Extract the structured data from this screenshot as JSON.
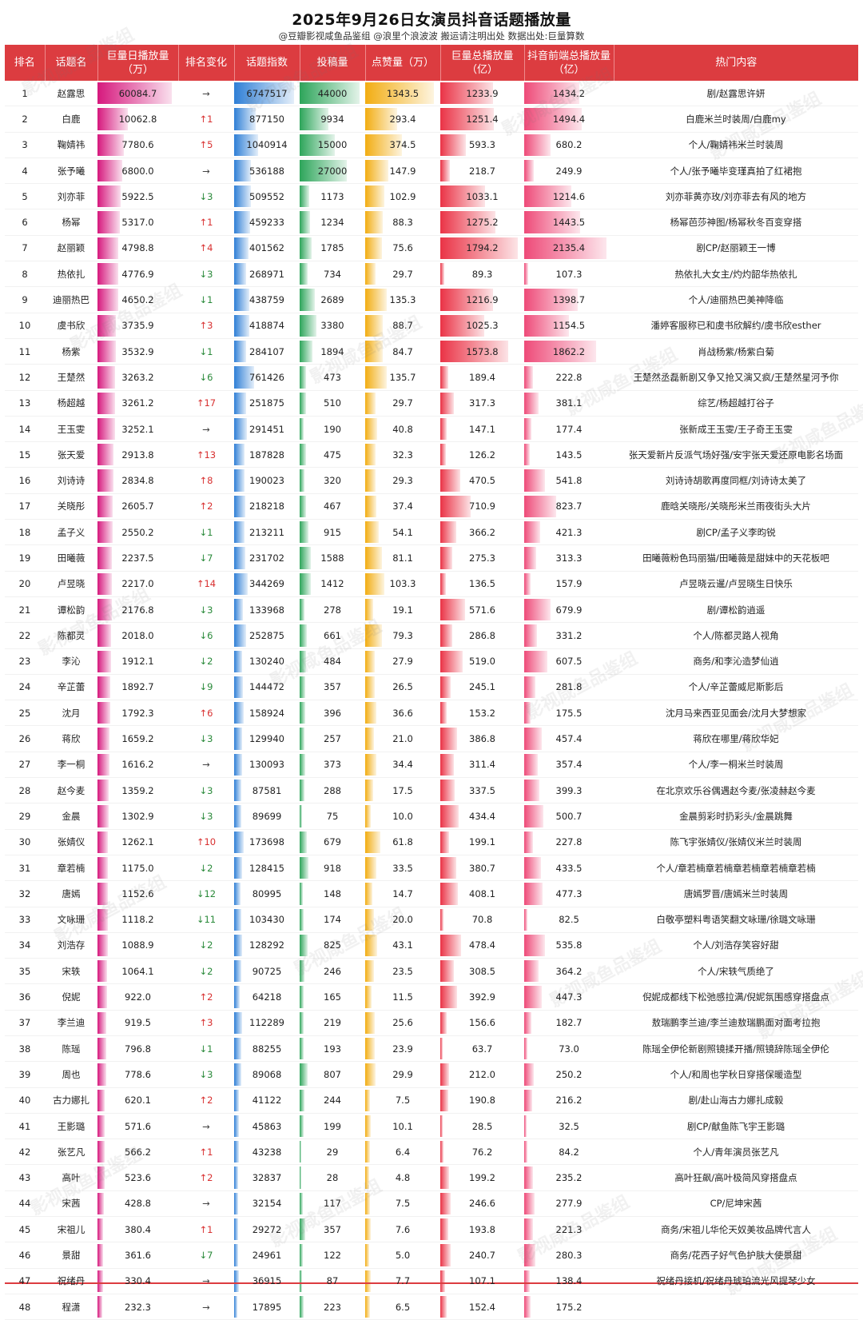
{
  "title": "2025年9月26日女演员抖音话题播放量",
  "subtitle": "@豆瓣影视咸鱼品鉴组 @浪里个浪波波 搬运请注明出处 数据出处:巨量算数",
  "columns": [
    "排名",
    "话题名",
    "巨量日播放量（万）",
    "排名变化",
    "话题指数",
    "投稿量",
    "点赞量（万）",
    "巨量总播放量（亿）",
    "抖音前端总播放量（亿）",
    "热门内容"
  ],
  "watermark": "影视咸鱼品鉴组",
  "colors": {
    "header": "#dc3c40",
    "daily": "#d6187d",
    "index": "#2f7fd6",
    "posts": "#2da55a",
    "likes": "#f2ad12",
    "total": "#ea3346",
    "front": "#ee4a78"
  },
  "rows": [
    {
      "rank": "1",
      "name": "赵露思",
      "daily": "60084.7",
      "change": "→",
      "index": "6747517",
      "posts": "44000",
      "likes": "1343.5",
      "total": "1233.9",
      "front": "1434.2",
      "hot": "剧/赵露思许妍"
    },
    {
      "rank": "2",
      "name": "白鹿",
      "daily": "10062.8",
      "change": "↑1",
      "index": "877150",
      "posts": "9934",
      "likes": "293.4",
      "total": "1251.4",
      "front": "1494.4",
      "hot": "白鹿米兰时装周/白鹿my"
    },
    {
      "rank": "3",
      "name": "鞠婧祎",
      "daily": "7780.6",
      "change": "↑5",
      "index": "1040914",
      "posts": "15000",
      "likes": "374.5",
      "total": "593.3",
      "front": "680.2",
      "hot": "个人/鞠婧祎米兰时装周"
    },
    {
      "rank": "4",
      "name": "张予曦",
      "daily": "6800.0",
      "change": "→",
      "index": "536188",
      "posts": "27000",
      "likes": "147.9",
      "total": "218.7",
      "front": "249.9",
      "hot": "个人/张予曦毕变瑾真拍了红裙抱"
    },
    {
      "rank": "5",
      "name": "刘亦菲",
      "daily": "5922.5",
      "change": "↓3",
      "index": "509552",
      "posts": "1173",
      "likes": "102.9",
      "total": "1033.1",
      "front": "1214.6",
      "hot": "刘亦菲黄亦玫/刘亦菲去有风的地方"
    },
    {
      "rank": "6",
      "name": "杨幂",
      "daily": "5317.0",
      "change": "↑1",
      "index": "459233",
      "posts": "1234",
      "likes": "88.3",
      "total": "1275.2",
      "front": "1443.5",
      "hot": "杨幂芭莎神图/杨幂秋冬百变穿搭"
    },
    {
      "rank": "7",
      "name": "赵丽颖",
      "daily": "4798.8",
      "change": "↑4",
      "index": "401562",
      "posts": "1785",
      "likes": "75.6",
      "total": "1794.2",
      "front": "2135.4",
      "hot": "剧CP/赵丽颖王一博"
    },
    {
      "rank": "8",
      "name": "热依扎",
      "daily": "4776.9",
      "change": "↓3",
      "index": "268971",
      "posts": "734",
      "likes": "29.7",
      "total": "89.3",
      "front": "107.3",
      "hot": "热依扎大女主/灼灼韶华热依扎"
    },
    {
      "rank": "9",
      "name": "迪丽热巴",
      "daily": "4650.2",
      "change": "↓1",
      "index": "438759",
      "posts": "2689",
      "likes": "135.3",
      "total": "1216.9",
      "front": "1398.7",
      "hot": "个人/迪丽热巴美神降临"
    },
    {
      "rank": "10",
      "name": "虞书欣",
      "daily": "3735.9",
      "change": "↑3",
      "index": "418874",
      "posts": "3380",
      "likes": "88.7",
      "total": "1025.3",
      "front": "1154.5",
      "hot": "潘婷客服称已和虞书欣解约/虞书欣esther"
    },
    {
      "rank": "11",
      "name": "杨紫",
      "daily": "3532.9",
      "change": "↓1",
      "index": "284107",
      "posts": "1894",
      "likes": "84.7",
      "total": "1573.8",
      "front": "1862.2",
      "hot": "肖战杨紫/杨紫白菊"
    },
    {
      "rank": "12",
      "name": "王楚然",
      "daily": "3263.2",
      "change": "↓6",
      "index": "761426",
      "posts": "473",
      "likes": "135.7",
      "total": "189.4",
      "front": "222.8",
      "hot": "王楚然丞磊新剧又争又抢又演又疯/王楚然星河予你"
    },
    {
      "rank": "13",
      "name": "杨超越",
      "daily": "3261.2",
      "change": "↑17",
      "index": "251875",
      "posts": "510",
      "likes": "29.7",
      "total": "317.3",
      "front": "381.1",
      "hot": "综艺/杨超越打谷子"
    },
    {
      "rank": "14",
      "name": "王玉雯",
      "daily": "3252.1",
      "change": "→",
      "index": "291451",
      "posts": "190",
      "likes": "40.8",
      "total": "147.1",
      "front": "177.4",
      "hot": "张新成王玉雯/王子奇王玉雯"
    },
    {
      "rank": "15",
      "name": "张天爱",
      "daily": "2913.8",
      "change": "↑13",
      "index": "187828",
      "posts": "475",
      "likes": "32.3",
      "total": "126.2",
      "front": "143.5",
      "hot": "张天爱新片反派气场好强/安宇张天爱还原电影名场面"
    },
    {
      "rank": "16",
      "name": "刘诗诗",
      "daily": "2834.8",
      "change": "↑8",
      "index": "190023",
      "posts": "320",
      "likes": "29.3",
      "total": "470.5",
      "front": "541.8",
      "hot": "刘诗诗胡歌再度同框/刘诗诗太美了"
    },
    {
      "rank": "17",
      "name": "关晓彤",
      "daily": "2605.7",
      "change": "↑2",
      "index": "218218",
      "posts": "467",
      "likes": "37.4",
      "total": "710.9",
      "front": "823.7",
      "hot": "鹿晗关晓彤/关晓彤米兰雨夜街头大片"
    },
    {
      "rank": "18",
      "name": "孟子义",
      "daily": "2550.2",
      "change": "↓1",
      "index": "213211",
      "posts": "915",
      "likes": "54.1",
      "total": "366.2",
      "front": "421.3",
      "hot": "剧CP/孟子义李昀锐"
    },
    {
      "rank": "19",
      "name": "田曦薇",
      "daily": "2237.5",
      "change": "↓7",
      "index": "231702",
      "posts": "1588",
      "likes": "81.1",
      "total": "275.3",
      "front": "313.3",
      "hot": "田曦薇粉色玛丽猫/田曦薇是甜妹中的天花板吧"
    },
    {
      "rank": "20",
      "name": "卢昱晓",
      "daily": "2217.0",
      "change": "↑14",
      "index": "344269",
      "posts": "1412",
      "likes": "103.3",
      "total": "136.5",
      "front": "157.9",
      "hot": "卢昱晓云暹/卢昱晓生日快乐"
    },
    {
      "rank": "21",
      "name": "谭松韵",
      "daily": "2176.8",
      "change": "↓3",
      "index": "133968",
      "posts": "278",
      "likes": "19.1",
      "total": "571.6",
      "front": "679.9",
      "hot": "剧/谭松韵逍遥"
    },
    {
      "rank": "22",
      "name": "陈都灵",
      "daily": "2018.0",
      "change": "↓6",
      "index": "252875",
      "posts": "661",
      "likes": "79.3",
      "total": "286.8",
      "front": "331.2",
      "hot": "个人/陈都灵路人视角"
    },
    {
      "rank": "23",
      "name": "李沁",
      "daily": "1912.1",
      "change": "↓2",
      "index": "130240",
      "posts": "484",
      "likes": "27.9",
      "total": "519.0",
      "front": "607.5",
      "hot": "商务/和李沁造梦仙逍"
    },
    {
      "rank": "24",
      "name": "辛芷蕾",
      "daily": "1892.7",
      "change": "↓9",
      "index": "144472",
      "posts": "357",
      "likes": "26.5",
      "total": "245.1",
      "front": "281.8",
      "hot": "个人/辛芷蕾威尼斯影后"
    },
    {
      "rank": "25",
      "name": "沈月",
      "daily": "1792.3",
      "change": "↑6",
      "index": "158924",
      "posts": "396",
      "likes": "36.6",
      "total": "153.2",
      "front": "175.5",
      "hot": "沈月马来西亚见面会/沈月大梦想家"
    },
    {
      "rank": "26",
      "name": "蒋欣",
      "daily": "1659.2",
      "change": "↓3",
      "index": "129940",
      "posts": "257",
      "likes": "21.0",
      "total": "386.8",
      "front": "457.4",
      "hot": "蒋欣在哪里/蒋欣华妃"
    },
    {
      "rank": "27",
      "name": "李一桐",
      "daily": "1616.2",
      "change": "→",
      "index": "130093",
      "posts": "373",
      "likes": "34.4",
      "total": "311.4",
      "front": "357.4",
      "hot": "个人/李一桐米兰时装周"
    },
    {
      "rank": "28",
      "name": "赵今麦",
      "daily": "1359.2",
      "change": "↓3",
      "index": "87581",
      "posts": "288",
      "likes": "17.5",
      "total": "337.5",
      "front": "399.3",
      "hot": "在北京欢乐谷偶遇赵今麦/张凌赫赵今麦"
    },
    {
      "rank": "29",
      "name": "金晨",
      "daily": "1302.9",
      "change": "↓3",
      "index": "89699",
      "posts": "75",
      "likes": "10.0",
      "total": "434.4",
      "front": "500.7",
      "hot": "金晨剪彩时扔彩头/金晨跳舞"
    },
    {
      "rank": "30",
      "name": "张婧仪",
      "daily": "1262.1",
      "change": "↑10",
      "index": "173698",
      "posts": "679",
      "likes": "61.8",
      "total": "199.1",
      "front": "227.8",
      "hot": "陈飞宇张婧仪/张婧仪米兰时装周"
    },
    {
      "rank": "31",
      "name": "章若楠",
      "daily": "1175.0",
      "change": "↓2",
      "index": "128415",
      "posts": "918",
      "likes": "33.5",
      "total": "380.7",
      "front": "433.5",
      "hot": "个人/章若楠章若楠章若楠章若楠章若楠"
    },
    {
      "rank": "32",
      "name": "唐嫣",
      "daily": "1152.6",
      "change": "↓12",
      "index": "80995",
      "posts": "148",
      "likes": "14.7",
      "total": "408.1",
      "front": "477.3",
      "hot": "唐嫣罗晋/唐嫣米兰时装周"
    },
    {
      "rank": "33",
      "name": "文咏珊",
      "daily": "1118.2",
      "change": "↓11",
      "index": "103430",
      "posts": "174",
      "likes": "20.0",
      "total": "70.8",
      "front": "82.5",
      "hot": "白敬亭塑料粤语笑翻文咏珊/徐璐文咏珊"
    },
    {
      "rank": "34",
      "name": "刘浩存",
      "daily": "1088.9",
      "change": "↓2",
      "index": "128292",
      "posts": "825",
      "likes": "43.1",
      "total": "478.4",
      "front": "535.8",
      "hot": "个人/刘浩存笑容好甜"
    },
    {
      "rank": "35",
      "name": "宋轶",
      "daily": "1064.1",
      "change": "↓2",
      "index": "90725",
      "posts": "246",
      "likes": "23.5",
      "total": "308.5",
      "front": "364.2",
      "hot": "个人/宋轶气质绝了"
    },
    {
      "rank": "36",
      "name": "倪妮",
      "daily": "922.0",
      "change": "↑2",
      "index": "64218",
      "posts": "165",
      "likes": "11.5",
      "total": "392.9",
      "front": "447.3",
      "hot": "倪妮成都线下松弛感拉满/倪妮氛围感穿搭盘点"
    },
    {
      "rank": "37",
      "name": "李兰迪",
      "daily": "919.5",
      "change": "↑3",
      "index": "112289",
      "posts": "219",
      "likes": "25.6",
      "total": "156.6",
      "front": "182.7",
      "hot": "敖瑞鹏李兰迪/李兰迪敖瑞鹏面对面考拉抱"
    },
    {
      "rank": "38",
      "name": "陈瑶",
      "daily": "796.8",
      "change": "↓1",
      "index": "88255",
      "posts": "193",
      "likes": "23.9",
      "total": "63.7",
      "front": "73.0",
      "hot": "陈瑶全伊伦新剧照镜揉开播/照镜辞陈瑶全伊伦"
    },
    {
      "rank": "39",
      "name": "周也",
      "daily": "778.6",
      "change": "↓3",
      "index": "89068",
      "posts": "807",
      "likes": "29.9",
      "total": "212.0",
      "front": "250.2",
      "hot": "个人/和周也学秋日穿搭保暖造型"
    },
    {
      "rank": "40",
      "name": "古力娜扎",
      "daily": "620.1",
      "change": "↑2",
      "index": "41122",
      "posts": "244",
      "likes": "7.5",
      "total": "190.8",
      "front": "216.2",
      "hot": "剧/赴山海古力娜扎成毅"
    },
    {
      "rank": "41",
      "name": "王影璐",
      "daily": "571.6",
      "change": "→",
      "index": "45863",
      "posts": "199",
      "likes": "10.1",
      "total": "28.5",
      "front": "32.5",
      "hot": "剧CP/献鱼陈飞宇王影璐"
    },
    {
      "rank": "42",
      "name": "张艺凡",
      "daily": "566.2",
      "change": "↑1",
      "index": "43238",
      "posts": "29",
      "likes": "6.4",
      "total": "76.2",
      "front": "84.2",
      "hot": "个人/青年演员张艺凡"
    },
    {
      "rank": "43",
      "name": "高叶",
      "daily": "523.6",
      "change": "↑2",
      "index": "32837",
      "posts": "28",
      "likes": "4.8",
      "total": "199.2",
      "front": "235.2",
      "hot": "高叶狂飙/高叶极简风穿搭盘点"
    },
    {
      "rank": "44",
      "name": "宋茜",
      "daily": "428.8",
      "change": "→",
      "index": "32154",
      "posts": "117",
      "likes": "7.5",
      "total": "246.6",
      "front": "277.9",
      "hot": "CP/尼坤宋茜"
    },
    {
      "rank": "45",
      "name": "宋祖儿",
      "daily": "380.4",
      "change": "↑1",
      "index": "29272",
      "posts": "357",
      "likes": "7.6",
      "total": "193.8",
      "front": "221.3",
      "hot": "商务/宋祖儿华伦天奴美妆品牌代言人"
    },
    {
      "rank": "46",
      "name": "景甜",
      "daily": "361.6",
      "change": "↓7",
      "index": "24961",
      "posts": "122",
      "likes": "5.0",
      "total": "240.7",
      "front": "280.3",
      "hot": "商务/花西子好气色护肤大使景甜"
    },
    {
      "rank": "47",
      "name": "祝绪丹",
      "daily": "330.4",
      "change": "→",
      "index": "36915",
      "posts": "87",
      "likes": "7.7",
      "total": "107.1",
      "front": "138.4",
      "hot": "祝绪丹接机/祝绪丹琥珀流光风提琴少女"
    },
    {
      "rank": "48",
      "name": "程潇",
      "daily": "232.3",
      "change": "→",
      "index": "17895",
      "posts": "223",
      "likes": "6.5",
      "total": "152.4",
      "front": "175.2",
      "hot": ""
    }
  ]
}
